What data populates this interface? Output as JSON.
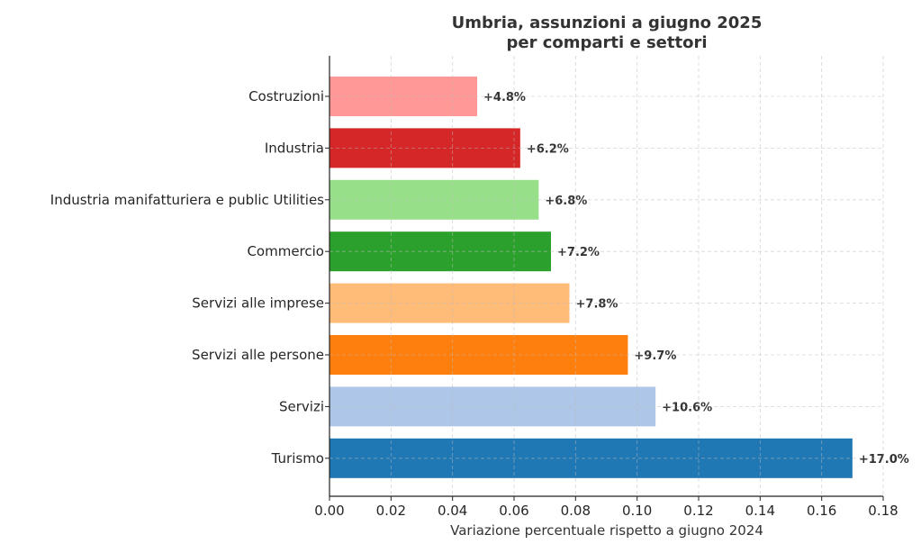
{
  "chart_data": {
    "type": "bar",
    "orientation": "horizontal",
    "title": "Umbria, assunzioni a giugno 2025\nper comparti e settori",
    "title_lines": [
      "Umbria, assunzioni a giugno 2025",
      "per comparti e settori"
    ],
    "xlabel": "Variazione percentuale rispetto a giugno 2024",
    "ylabel": "",
    "xlim": [
      0,
      0.18
    ],
    "xticks": [
      "0.00",
      "0.02",
      "0.04",
      "0.06",
      "0.08",
      "0.10",
      "0.12",
      "0.14",
      "0.16",
      "0.18"
    ],
    "grid": true,
    "categories": [
      "Costruzioni",
      "Industria",
      "Industria manifatturiera e public Utilities",
      "Commercio",
      "Servizi alle imprese",
      "Servizi alle persone",
      "Servizi",
      "Turismo"
    ],
    "values": [
      0.048,
      0.062,
      0.068,
      0.072,
      0.078,
      0.097,
      0.106,
      0.17
    ],
    "data_labels": [
      "+4.8%",
      "+6.2%",
      "+6.8%",
      "+7.2%",
      "+7.8%",
      "+9.7%",
      "+10.6%",
      "+17.0%"
    ],
    "colors": [
      "#ff9896",
      "#d62728",
      "#98df8a",
      "#2ca02c",
      "#ffbb78",
      "#ff7f0e",
      "#aec7e8",
      "#1f77b4"
    ]
  }
}
